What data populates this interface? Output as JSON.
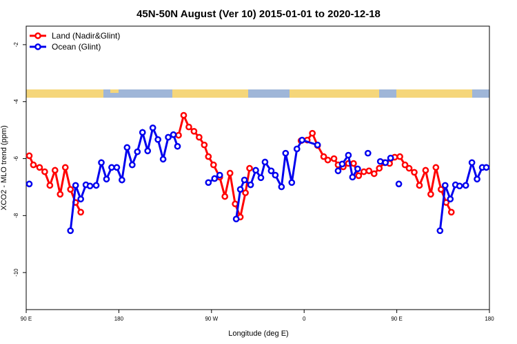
{
  "chart_data": {
    "type": "line",
    "title": "45N-50N August (Ver 10)   2015-01-01 to 2020-12-18",
    "x_label": "Longitude (deg E)",
    "y_label": "XCO2 - MLO trend (ppm)",
    "xlim": [
      90,
      540
    ],
    "xticks": [
      {
        "value": 90,
        "label": "90 E"
      },
      {
        "value": 180,
        "label": "180"
      },
      {
        "value": 270,
        "label": "90 W"
      },
      {
        "value": 360,
        "label": "0"
      },
      {
        "value": 450,
        "label": "90 E"
      },
      {
        "value": 540,
        "label": "180"
      }
    ],
    "ylim": [
      -11.3,
      -1.35
    ],
    "yticks": [
      -2,
      -4,
      -6,
      -8,
      -10
    ],
    "legend": "top-left",
    "series": [
      {
        "name": "Land (Nadir&Glint)",
        "color": "#ff0000",
        "x": [
          93,
          97,
          103,
          108,
          113,
          118,
          123,
          128,
          133,
          138,
          143,
          null,
          238,
          243,
          248,
          253,
          258,
          263,
          267,
          272,
          278,
          283,
          288,
          293,
          298,
          303,
          307,
          null,
          357,
          363,
          368,
          373,
          379,
          383,
          389,
          393,
          398,
          403,
          408,
          413,
          418,
          423,
          428,
          433,
          438,
          443,
          448,
          453,
          458,
          462,
          467,
          472,
          478,
          483,
          488,
          493,
          498,
          503
        ],
        "values": [
          -5.9,
          -6.22,
          -6.31,
          -6.46,
          -6.94,
          -6.41,
          -7.25,
          -6.31,
          -7.08,
          -7.54,
          -7.88,
          null,
          -5.18,
          -4.48,
          -4.89,
          -5.04,
          -5.25,
          -5.52,
          -5.93,
          -6.22,
          -6.65,
          -7.33,
          -6.51,
          -7.59,
          -8.05,
          -7.2,
          -6.34,
          null,
          -5.37,
          -5.35,
          -5.11,
          -5.54,
          -5.93,
          -6.05,
          -6.0,
          -6.22,
          -6.29,
          -6.17,
          -6.17,
          -6.6,
          -6.46,
          -6.43,
          -6.53,
          -6.34,
          -6.14,
          -6.17,
          -5.95,
          -5.93,
          -6.22,
          -6.34,
          -6.48,
          -6.94,
          -6.41,
          -7.25,
          -6.31,
          -7.08,
          -7.54,
          -7.88
        ]
      },
      {
        "name": "Ocean (Glint)",
        "color": "#0000ee",
        "x": [
          93,
          null,
          133,
          138,
          143,
          148,
          152,
          158,
          163,
          168,
          173,
          178,
          183,
          188,
          193,
          198,
          203,
          208,
          213,
          218,
          223,
          228,
          233,
          237,
          null,
          267,
          273,
          278,
          null,
          294,
          298,
          302,
          308,
          313,
          318,
          322,
          328,
          332,
          338,
          342,
          348,
          353,
          358,
          373,
          null,
          393,
          397,
          403,
          407,
          412,
          null,
          422,
          null,
          434,
          439,
          444,
          null,
          452,
          null,
          492,
          497,
          502,
          507,
          511,
          517,
          523,
          528,
          533,
          537
        ],
        "values": [
          -6.89,
          null,
          -8.53,
          -6.94,
          -7.42,
          -6.92,
          -6.96,
          -6.94,
          -6.14,
          -6.72,
          -6.31,
          -6.31,
          -6.75,
          -5.61,
          -6.22,
          -5.76,
          -5.08,
          -5.73,
          -4.92,
          -5.33,
          -6.02,
          -5.25,
          -5.16,
          -5.57,
          null,
          -6.84,
          -6.7,
          -6.58,
          null,
          -8.12,
          -7.08,
          -6.75,
          -6.92,
          -6.41,
          -6.67,
          -6.12,
          -6.43,
          -6.58,
          -6.99,
          -5.81,
          -6.84,
          -5.66,
          -5.35,
          -5.52,
          null,
          -6.43,
          -6.19,
          -5.88,
          -6.65,
          -6.36,
          null,
          -5.81,
          null,
          -6.1,
          -6.14,
          -5.98,
          null,
          -6.89,
          null,
          -8.53,
          -6.94,
          -7.42,
          -6.92,
          -6.96,
          -6.94,
          -6.14,
          -6.72,
          -6.31,
          -6.31
        ]
      }
    ]
  }
}
